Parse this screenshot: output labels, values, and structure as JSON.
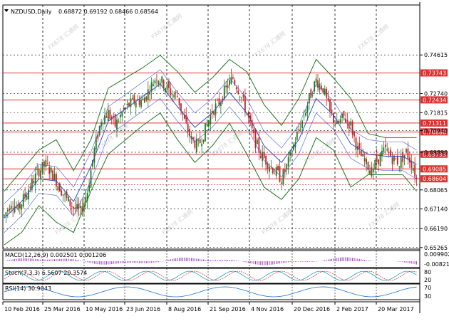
{
  "header": {
    "symbol_label": "NZDUSD,Daily",
    "ohlc": "0.68872 0.69192 0.68466 0.68564"
  },
  "watermark": "FX678 汇通网",
  "chart_data": {
    "type": "line",
    "title": "NZDUSD,Daily  0.68872 0.69192 0.68466 0.68564",
    "x_labels": [
      "10 Feb 2016",
      "25 Mar 2016",
      "10 May 2016",
      "23 Jun 2016",
      "8 Aug 2016",
      "21 Sep 2016",
      "4 Nov 2016",
      "20 Dec 2016",
      "2 Feb 2017",
      "20 Mar 2017"
    ],
    "ylim": [
      0.6519,
      0.7635
    ],
    "y_ticks": [
      "0.74615",
      "0.72740",
      "0.71815",
      "0.70940",
      "0.69890",
      "0.68065",
      "0.67140",
      "0.66190",
      "0.65265"
    ],
    "horizontal_levels": [
      {
        "label": "0.73743",
        "value": 0.73743
      },
      {
        "label": "0.72434",
        "value": 0.72434
      },
      {
        "label": "0.71311",
        "value": 0.71311
      },
      {
        "label": "0.70880",
        "value": 0.7088
      },
      {
        "label": "0.69793",
        "value": 0.69793
      },
      {
        "label": "0.69085",
        "value": 0.69085
      },
      {
        "label": "0.68604",
        "value": 0.68604
      }
    ],
    "current_price": "0.68564",
    "price_path": [
      [
        0,
        0.668
      ],
      [
        4,
        0.675
      ],
      [
        8,
        0.671
      ],
      [
        12,
        0.678
      ],
      [
        16,
        0.684
      ],
      [
        20,
        0.69
      ],
      [
        24,
        0.693
      ],
      [
        28,
        0.688
      ],
      [
        32,
        0.682
      ],
      [
        36,
        0.676
      ],
      [
        40,
        0.672
      ],
      [
        44,
        0.67
      ],
      [
        48,
        0.68
      ],
      [
        52,
        0.7
      ],
      [
        56,
        0.715
      ],
      [
        60,
        0.718
      ],
      [
        64,
        0.712
      ],
      [
        68,
        0.718
      ],
      [
        72,
        0.722
      ],
      [
        76,
        0.724
      ],
      [
        80,
        0.724
      ],
      [
        84,
        0.73
      ],
      [
        88,
        0.736
      ],
      [
        92,
        0.732
      ],
      [
        96,
        0.728
      ],
      [
        100,
        0.726
      ],
      [
        104,
        0.714
      ],
      [
        108,
        0.705
      ],
      [
        112,
        0.702
      ],
      [
        116,
        0.71
      ],
      [
        120,
        0.719
      ],
      [
        124,
        0.723
      ],
      [
        128,
        0.73
      ],
      [
        132,
        0.735
      ],
      [
        136,
        0.728
      ],
      [
        140,
        0.718
      ],
      [
        144,
        0.706
      ],
      [
        148,
        0.698
      ],
      [
        152,
        0.694
      ],
      [
        156,
        0.69
      ],
      [
        160,
        0.686
      ],
      [
        164,
        0.694
      ],
      [
        168,
        0.705
      ],
      [
        172,
        0.714
      ],
      [
        176,
        0.725
      ],
      [
        180,
        0.734
      ],
      [
        184,
        0.73
      ],
      [
        188,
        0.718
      ],
      [
        192,
        0.712
      ],
      [
        196,
        0.716
      ],
      [
        200,
        0.712
      ],
      [
        204,
        0.7
      ],
      [
        208,
        0.694
      ],
      [
        212,
        0.69
      ],
      [
        216,
        0.696
      ],
      [
        220,
        0.7
      ],
      [
        224,
        0.696
      ],
      [
        228,
        0.694
      ],
      [
        232,
        0.699
      ],
      [
        236,
        0.692
      ],
      [
        238,
        0.6856
      ]
    ],
    "bollinger_upper": [
      [
        0,
        0.68
      ],
      [
        10,
        0.69
      ],
      [
        20,
        0.7
      ],
      [
        30,
        0.705
      ],
      [
        40,
        0.69
      ],
      [
        50,
        0.705
      ],
      [
        60,
        0.73
      ],
      [
        70,
        0.735
      ],
      [
        80,
        0.74
      ],
      [
        90,
        0.746
      ],
      [
        100,
        0.738
      ],
      [
        110,
        0.728
      ],
      [
        120,
        0.735
      ],
      [
        130,
        0.744
      ],
      [
        140,
        0.738
      ],
      [
        150,
        0.722
      ],
      [
        160,
        0.712
      ],
      [
        170,
        0.725
      ],
      [
        180,
        0.744
      ],
      [
        190,
        0.735
      ],
      [
        200,
        0.725
      ],
      [
        210,
        0.708
      ],
      [
        220,
        0.706
      ],
      [
        230,
        0.706
      ],
      [
        238,
        0.706
      ]
    ],
    "bollinger_lower": [
      [
        0,
        0.654
      ],
      [
        10,
        0.66
      ],
      [
        20,
        0.673
      ],
      [
        30,
        0.665
      ],
      [
        40,
        0.66
      ],
      [
        50,
        0.68
      ],
      [
        60,
        0.698
      ],
      [
        70,
        0.705
      ],
      [
        80,
        0.712
      ],
      [
        90,
        0.718
      ],
      [
        100,
        0.705
      ],
      [
        110,
        0.694
      ],
      [
        120,
        0.702
      ],
      [
        130,
        0.713
      ],
      [
        140,
        0.698
      ],
      [
        150,
        0.682
      ],
      [
        160,
        0.676
      ],
      [
        170,
        0.686
      ],
      [
        180,
        0.706
      ],
      [
        190,
        0.7
      ],
      [
        200,
        0.682
      ],
      [
        210,
        0.688
      ],
      [
        220,
        0.688
      ],
      [
        230,
        0.688
      ],
      [
        238,
        0.68
      ]
    ],
    "ma_middle": [
      [
        0,
        0.667
      ],
      [
        10,
        0.675
      ],
      [
        20,
        0.686
      ],
      [
        30,
        0.685
      ],
      [
        40,
        0.675
      ],
      [
        50,
        0.692
      ],
      [
        60,
        0.714
      ],
      [
        70,
        0.72
      ],
      [
        80,
        0.726
      ],
      [
        90,
        0.732
      ],
      [
        100,
        0.721
      ],
      [
        110,
        0.711
      ],
      [
        120,
        0.718
      ],
      [
        130,
        0.728
      ],
      [
        140,
        0.718
      ],
      [
        150,
        0.702
      ],
      [
        160,
        0.694
      ],
      [
        170,
        0.705
      ],
      [
        180,
        0.725
      ],
      [
        190,
        0.717
      ],
      [
        200,
        0.703
      ],
      [
        210,
        0.698
      ],
      [
        220,
        0.697
      ],
      [
        230,
        0.697
      ],
      [
        238,
        0.693
      ]
    ],
    "indicators": [
      {
        "name": "MACD(12,26,9)",
        "label": "MACD(12,26,9) 0.002501 0.001206",
        "levels": [
          "0.009902",
          "-0.008218"
        ]
      },
      {
        "name": "Stoch(7,3,3)",
        "label": "Stoch(7,3,3) 6.5607 20.3574",
        "levels": [
          "80",
          "20"
        ]
      },
      {
        "name": "RSI(14)",
        "label": "RSI(14) 30.9043",
        "levels": [
          "70",
          "30"
        ]
      }
    ]
  },
  "colors": {
    "background": "#ffffff",
    "level_line": "#e03030",
    "level_label_bg": "#e03030",
    "grid": "#000000",
    "bull_candle": "#1e7a1e",
    "bear_candle": "#c82020",
    "band": "#1f7a1f",
    "ma": "#3050c8",
    "macd_hist": "#a040c0"
  }
}
